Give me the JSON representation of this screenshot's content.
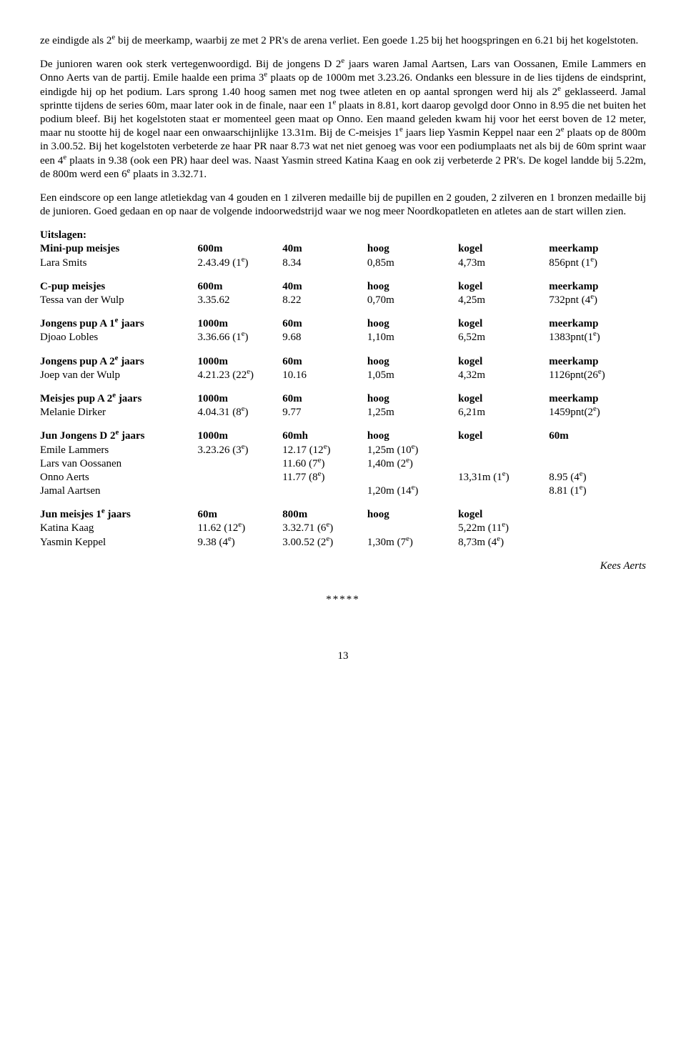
{
  "para1_pre": "ze eindigde als 2",
  "para1_post": " bij de meerkamp, waarbij ze met 2 PR's de arena verliet. Een goede 1.25 bij het hoogspringen en 6.21 bij het kogelstoten.",
  "para2_a": "De junioren waren ook sterk vertegenwoordigd. Bij de jongens D 2",
  "para2_b": " jaars waren Jamal Aartsen, Lars van Oossanen, Emile Lammers en Onno Aerts van de partij. Emile haalde een prima 3",
  "para2_c": " plaats op de 1000m met 3.23.26. Ondanks een blessure in de lies tijdens de eindsprint, eindigde hij op het podium. Lars sprong 1.40 hoog samen met nog twee atleten en op aantal sprongen werd hij als 2",
  "para2_d": " geklasseerd. Jamal sprintte tijdens de series 60m, maar later ook in de finale, naar een 1",
  "para2_e": " plaats in 8.81, kort daarop gevolgd door Onno in 8.95 die net buiten het podium bleef. Bij het kogelstoten staat er momenteel geen maat op Onno. Een maand geleden kwam hij voor het eerst boven de 12 meter, maar nu stootte hij de kogel naar een onwaarschijnlijke 13.31m. Bij de C-meisjes 1",
  "para2_f": " jaars liep Yasmin Keppel naar een 2",
  "para2_g": " plaats op de 800m in 3.00.52. Bij het kogelstoten verbeterde ze haar PR naar 8.73 wat net niet genoeg was voor een podiumplaats net als bij de 60m sprint waar een 4",
  "para2_h": " plaats in 9.38 (ook een PR) haar deel was. Naast Yasmin streed Katina Kaag en ook zij verbeterde 2 PR's. De kogel landde bij 5.22m, de 800m werd een 6",
  "para2_i": " plaats in 3.32.71.",
  "para3": "Een eindscore op een lange atletiekdag van 4 gouden en 1 zilveren medaille bij de pupillen en 2 gouden, 2 zilveren en 1 bronzen medaille bij de junioren. Goed gedaan en op naar de volgende indoorwedstrijd waar we nog meer Noordkopatleten en atletes aan de start willen zien.",
  "uitslagen": "Uitslagen:",
  "e": "e",
  "tables": [
    {
      "head": [
        "Mini-pup meisjes",
        "600m",
        "40m",
        "hoog",
        "kogel",
        "meerkamp"
      ],
      "rows": [
        {
          "c": [
            "Lara Smits",
            "2.43.49 (1",
            ")",
            "8.34",
            "0,85m",
            "4,73m",
            "856pnt (1",
            ")"
          ],
          "sup": [
            1,
            6
          ]
        }
      ]
    },
    {
      "head": [
        "C-pup meisjes",
        "600m",
        "40m",
        "hoog",
        "kogel",
        "meerkamp"
      ],
      "rows": [
        {
          "c": [
            "Tessa van der Wulp",
            "3.35.62",
            "",
            "8.22",
            "0,70m",
            "4,25m",
            "732pnt (4",
            ")"
          ],
          "sup": [
            6
          ]
        }
      ]
    },
    {
      "head": [
        "Jongens pup A 1",
        " jaars",
        "1000m",
        "60m",
        "hoog",
        "kogel",
        "meerkamp"
      ],
      "sup_head": 0,
      "rows": [
        {
          "c": [
            "Djoao Lobles",
            "3.36.66 (1",
            ")",
            "9.68",
            "1,10m",
            "6,52m",
            "1383pnt(1",
            ")"
          ],
          "sup": [
            1,
            6
          ]
        }
      ]
    },
    {
      "head": [
        "Jongens pup A 2",
        " jaars",
        "1000m",
        "60m",
        "hoog",
        "kogel",
        "meerkamp"
      ],
      "sup_head": 0,
      "rows": [
        {
          "c": [
            "Joep van der Wulp",
            "4.21.23 (22",
            ")",
            "10.16",
            "1,05m",
            "4,32m",
            "1126pnt(26",
            ")"
          ],
          "sup": [
            1,
            6
          ]
        }
      ]
    },
    {
      "head": [
        "Meisjes pup A 2",
        " jaars",
        "1000m",
        "60m",
        "hoog",
        "kogel",
        "meerkamp"
      ],
      "sup_head": 0,
      "rows": [
        {
          "c": [
            "Melanie Dirker",
            "4.04.31 (8",
            ")",
            "9.77",
            "1,25m",
            "6,21m",
            "1459pnt(2",
            ")"
          ],
          "sup": [
            1,
            6
          ]
        }
      ]
    }
  ],
  "jun_d": {
    "head": [
      "Jun Jongens D 2",
      " jaars",
      "1000m",
      "60mh",
      "hoog",
      "kogel",
      "60m"
    ],
    "rows": [
      [
        "Emile Lammers",
        "3.23.26 (3",
        ")",
        "12.17 (12",
        ")",
        "1,25m (10",
        ")",
        "",
        ""
      ],
      [
        "Lars van Oossanen",
        "",
        "",
        "11.60 (7",
        ")",
        "1,40m (2",
        ")",
        "",
        ""
      ],
      [
        "Onno Aerts",
        "",
        "",
        "11.77 (8",
        ")",
        "",
        "13,31m (1",
        ")",
        "8.95 (4",
        ")"
      ],
      [
        "Jamal Aartsen",
        "",
        "",
        "",
        "",
        "1,20m (14",
        ")",
        "",
        "8.81 (1",
        ")"
      ]
    ]
  },
  "jun_m": {
    "head": [
      "Jun meisjes 1",
      " jaars",
      "60m",
      "800m",
      "hoog",
      "kogel"
    ],
    "rows": [
      [
        "Katina Kaag",
        "11.62 (12",
        ")",
        "3.32.71 (6",
        ")",
        "",
        "5,22m (11",
        ")"
      ],
      [
        "Yasmin Keppel",
        "9.38 (4",
        ")",
        "3.00.52 (2",
        ")",
        "1,30m (7",
        ")",
        "8,73m (4",
        ")"
      ]
    ]
  },
  "author": "Kees Aerts",
  "stars": "*****",
  "pagenum": "13"
}
